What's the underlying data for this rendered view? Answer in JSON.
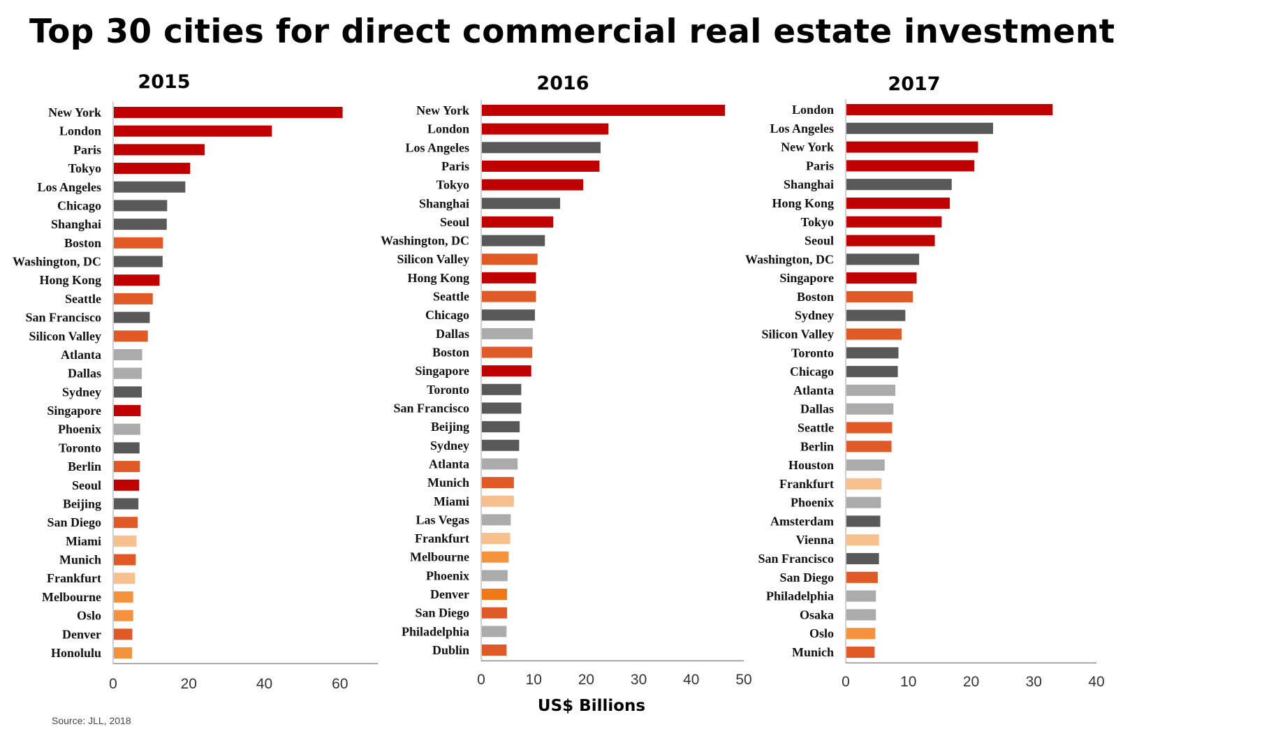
{
  "title": "Top 30 cities for direct commercial real estate investment",
  "source": "Source: JLL, 2018",
  "colors": {
    "dark_red": "#c00000",
    "dark_grey": "#595959",
    "mid_orange": "#e05a28",
    "light_grey": "#ababab",
    "peach": "#f7c08f",
    "light_orange": "#f5923e",
    "orange": "#f07818"
  },
  "chart_data": [
    {
      "type": "bar",
      "orientation": "horizontal",
      "title": "2015",
      "xlabel": "",
      "xlim": [
        0,
        70
      ],
      "ticks": [
        0,
        20,
        40,
        60
      ],
      "categories": [
        "New York",
        "London",
        "Paris",
        "Tokyo",
        "Los Angeles",
        "Chicago",
        "Shanghai",
        "Boston",
        "Washington, DC",
        "Hong Kong",
        "Seattle",
        "San Francisco",
        "Silicon Valley",
        "Atlanta",
        "Dallas",
        "Sydney",
        "Singapore",
        "Phoenix",
        "Toronto",
        "Berlin",
        "Seoul",
        "Beijing",
        "San Diego",
        "Miami",
        "Munich",
        "Frankfurt",
        "Melbourne",
        "Oslo",
        "Denver",
        "Honolulu"
      ],
      "values": [
        60.5,
        41.8,
        24.0,
        20.2,
        18.9,
        14.1,
        14.0,
        13.0,
        12.9,
        12.1,
        10.3,
        9.5,
        9.0,
        7.5,
        7.4,
        7.4,
        7.1,
        7.0,
        6.8,
        6.9,
        6.7,
        6.5,
        6.3,
        6.0,
        5.8,
        5.6,
        5.1,
        5.1,
        4.9,
        4.8
      ],
      "colors": [
        "dark_red",
        "dark_red",
        "dark_red",
        "dark_red",
        "dark_grey",
        "dark_grey",
        "dark_grey",
        "mid_orange",
        "dark_grey",
        "dark_red",
        "mid_orange",
        "dark_grey",
        "mid_orange",
        "light_grey",
        "light_grey",
        "dark_grey",
        "dark_red",
        "light_grey",
        "dark_grey",
        "mid_orange",
        "dark_red",
        "dark_grey",
        "mid_orange",
        "peach",
        "mid_orange",
        "peach",
        "light_orange",
        "light_orange",
        "mid_orange",
        "light_orange"
      ]
    },
    {
      "type": "bar",
      "orientation": "horizontal",
      "title": "2016",
      "xlabel": "US$ Billions",
      "xlim": [
        0,
        50
      ],
      "ticks": [
        0,
        10,
        20,
        30,
        40,
        50
      ],
      "categories": [
        "New York",
        "London",
        "Los Angeles",
        "Paris",
        "Tokyo",
        "Shanghai",
        "Seoul",
        "Washington, DC",
        "Silicon Valley",
        "Hong Kong",
        "Seattle",
        "Chicago",
        "Dallas",
        "Boston",
        "Singapore",
        "Toronto",
        "San Francisco",
        "Beijing",
        "Sydney",
        "Atlanta",
        "Munich",
        "Miami",
        "Las Vegas",
        "Frankfurt",
        "Melbourne",
        "Phoenix",
        "Denver",
        "San Diego",
        "Philadelphia",
        "Dublin"
      ],
      "values": [
        46.3,
        24.1,
        22.6,
        22.4,
        19.3,
        14.9,
        13.6,
        12.0,
        10.6,
        10.3,
        10.3,
        10.1,
        9.7,
        9.6,
        9.4,
        7.5,
        7.5,
        7.2,
        7.1,
        6.8,
        6.1,
        6.1,
        5.5,
        5.4,
        5.1,
        4.9,
        4.8,
        4.8,
        4.7,
        4.7
      ],
      "colors": [
        "dark_red",
        "dark_red",
        "dark_grey",
        "dark_red",
        "dark_red",
        "dark_grey",
        "dark_red",
        "dark_grey",
        "mid_orange",
        "dark_red",
        "mid_orange",
        "dark_grey",
        "light_grey",
        "mid_orange",
        "dark_red",
        "dark_grey",
        "dark_grey",
        "dark_grey",
        "dark_grey",
        "light_grey",
        "mid_orange",
        "peach",
        "light_grey",
        "peach",
        "light_orange",
        "light_grey",
        "orange",
        "mid_orange",
        "light_grey",
        "mid_orange"
      ]
    },
    {
      "type": "bar",
      "orientation": "horizontal",
      "title": "2017",
      "xlabel": "",
      "xlim": [
        0,
        40
      ],
      "ticks": [
        0,
        10,
        20,
        30,
        40
      ],
      "categories": [
        "London",
        "Los Angeles",
        "New York",
        "Paris",
        "Shanghai",
        "Hong Kong",
        "Tokyo",
        "Seoul",
        "Washington, DC",
        "Singapore",
        "Boston",
        "Sydney",
        "Silicon Valley",
        "Toronto",
        "Chicago",
        "Atlanta",
        "Dallas",
        "Seattle",
        "Berlin",
        "Houston",
        "Frankfurt",
        "Phoenix",
        "Amsterdam",
        "Vienna",
        "San Francisco",
        "San Diego",
        "Philadelphia",
        "Osaka",
        "Oslo",
        "Munich"
      ],
      "values": [
        32.9,
        23.4,
        21.0,
        20.4,
        16.8,
        16.5,
        15.2,
        14.1,
        11.6,
        11.2,
        10.6,
        9.4,
        8.8,
        8.3,
        8.2,
        7.8,
        7.5,
        7.3,
        7.2,
        6.1,
        5.6,
        5.5,
        5.4,
        5.2,
        5.2,
        5.0,
        4.7,
        4.7,
        4.6,
        4.5
      ],
      "colors": [
        "dark_red",
        "dark_grey",
        "dark_red",
        "dark_red",
        "dark_grey",
        "dark_red",
        "dark_red",
        "dark_red",
        "dark_grey",
        "dark_red",
        "mid_orange",
        "dark_grey",
        "mid_orange",
        "dark_grey",
        "dark_grey",
        "light_grey",
        "light_grey",
        "mid_orange",
        "mid_orange",
        "light_grey",
        "peach",
        "light_grey",
        "dark_grey",
        "peach",
        "dark_grey",
        "mid_orange",
        "light_grey",
        "light_grey",
        "light_orange",
        "mid_orange"
      ]
    }
  ]
}
